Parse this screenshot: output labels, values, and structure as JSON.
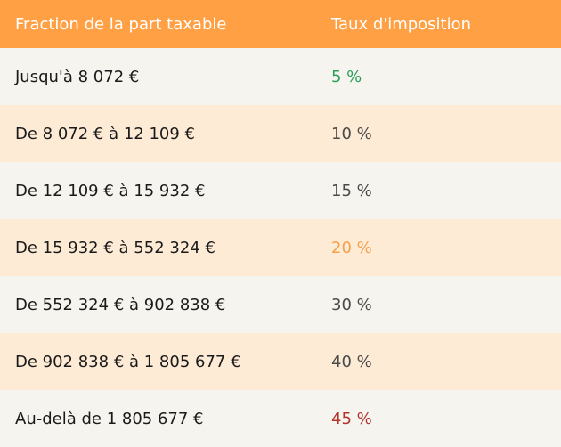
{
  "table": {
    "header": [
      "Fraction de la part taxable",
      "Taux d'imposition"
    ],
    "rows": [
      {
        "range": "Jusqu'à 8 072 €",
        "rate": "5 %",
        "color": "#2e9e5b"
      },
      {
        "range": "De 8 072 € à 12 109 €",
        "rate": "10 %",
        "color": "#4a4a4a"
      },
      {
        "range": "De 12 109 € à 15 932 €",
        "rate": "15 %",
        "color": "#4a4a4a"
      },
      {
        "range": "De 15 932 € à 552 324 €",
        "rate": "20 %",
        "color": "#f5a04a"
      },
      {
        "range": "De 552 324 € à 902 838 €",
        "rate": "30 %",
        "color": "#4a4a4a"
      },
      {
        "range": "De 902 838 € à 1 805 677 €",
        "rate": "40 %",
        "color": "#4a4a4a"
      },
      {
        "range": "Au-delà de 1 805 677 €",
        "rate": "45 %",
        "color": "#b3322b"
      }
    ]
  }
}
